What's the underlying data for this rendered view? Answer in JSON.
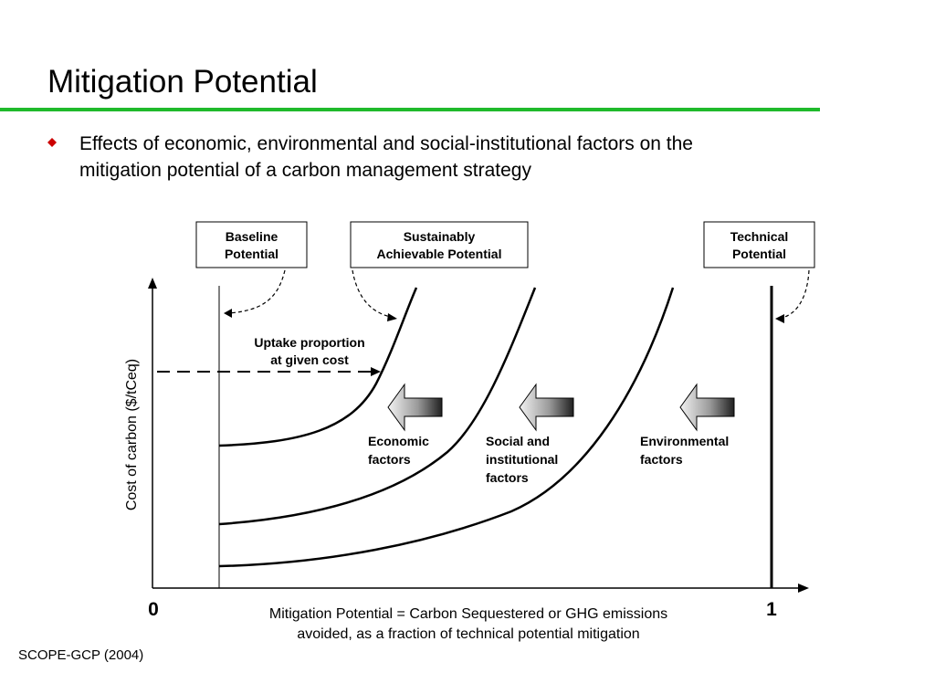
{
  "slide": {
    "title": "Mitigation Potential",
    "bullet_lines": [
      "Effects of economic, environmental and social-institutional factors on the",
      "mitigation potential of a carbon management strategy"
    ],
    "source": "SCOPE-GCP (2004)"
  },
  "diagram": {
    "boxes": {
      "baseline": [
        "Baseline",
        "Potential"
      ],
      "sustainable": [
        "Sustainably",
        "Achievable Potential"
      ],
      "technical": [
        "Technical",
        "Potential"
      ]
    },
    "uptake_label": [
      "Uptake proportion",
      "at given cost"
    ],
    "factors": {
      "economic": [
        "Economic",
        "factors"
      ],
      "social": [
        "Social and",
        "institutional",
        "factors"
      ],
      "environmental": [
        "Environmental",
        "factors"
      ]
    },
    "y_axis_label": "Cost of carbon ($/tCeq)",
    "x_axis_start": "0",
    "x_axis_end": "1",
    "x_caption": [
      "Mitigation Potential = Carbon Sequestered or GHG emissions",
      "avoided, as a fraction of technical potential mitigation"
    ]
  },
  "colors": {
    "accent_rule": "#1fba2b",
    "bullet": "#cc0000"
  }
}
